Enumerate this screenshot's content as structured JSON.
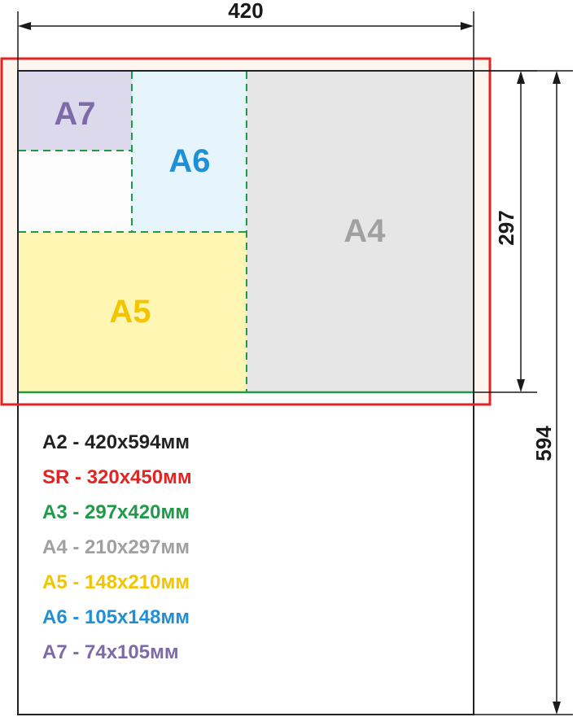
{
  "dimensions": {
    "width_label": "420",
    "height_label": "594",
    "a3_height_label": "297"
  },
  "sheets": [
    {
      "id": "a7",
      "label": "A7",
      "color": "#7d6aa8",
      "fill": "#ddd9ec"
    },
    {
      "id": "a6",
      "label": "A6",
      "color": "#1f8fd6",
      "fill": "#e6f4fb"
    },
    {
      "id": "a5",
      "label": "A5",
      "color": "#f2c500",
      "fill": "#fff6b3"
    },
    {
      "id": "a4",
      "label": "A4",
      "color": "#a0a0a0",
      "fill": "#e6e6e6"
    }
  ],
  "colors": {
    "a2_border": "#222222",
    "sr_border": "#e32422",
    "a3_border": "#1e9a48",
    "dash": "#1e9a48"
  },
  "legend": [
    {
      "text": "A2 - 420x594мм",
      "color": "#222222"
    },
    {
      "text": "SR - 320x450мм",
      "color": "#e32422"
    },
    {
      "text": "A3 - 297x420мм",
      "color": "#1e9a48"
    },
    {
      "text": "A4 - 210x297мм",
      "color": "#a0a0a0"
    },
    {
      "text": "A5 - 148x210мм",
      "color": "#f2c500"
    },
    {
      "text": "A6 - 105x148мм",
      "color": "#1f8fd6"
    },
    {
      "text": "A7 - 74x105мм",
      "color": "#7d6aa8"
    }
  ]
}
